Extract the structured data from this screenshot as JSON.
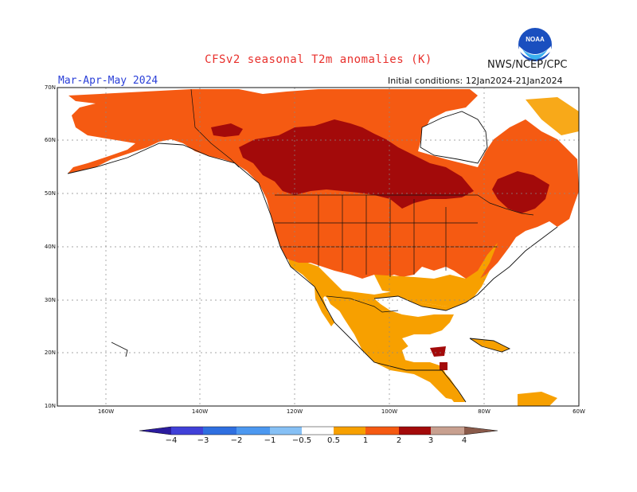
{
  "header": {
    "title": "CFSv2 seasonal T2m anomalies (K)",
    "agency": "NWS/NCEP/CPC",
    "logo_text": "NOAA",
    "season": "Mar-Apr-May 2024",
    "initial_conditions": "Initial conditions: 12Jan2024-21Jan2024"
  },
  "axes": {
    "lat_labels": [
      "70N",
      "60N",
      "50N",
      "40N",
      "30N",
      "20N",
      "10N"
    ],
    "lon_labels": [
      "160W",
      "140W",
      "120W",
      "100W",
      "80W",
      "60W"
    ]
  },
  "colorbar": {
    "labels": [
      "-4",
      "-3",
      "-2",
      "-1",
      "-0.5",
      "0.5",
      "1",
      "2",
      "3",
      "4"
    ],
    "colors": [
      "#2b1b9e",
      "#4040d8",
      "#2f6fe0",
      "#4c98f0",
      "#86c0f5",
      "#ffffff",
      "#f7a000",
      "#f55a12",
      "#e02710",
      "#a30a0a",
      "#c8a090",
      "#8a5a4a"
    ]
  },
  "map_colors": {
    "ocean": "#ffffff",
    "land_gray": "#ffffff",
    "c_0_5_1": "#f7a000",
    "c_1_2": "#f55a12",
    "c_2_3": "#a30a0a",
    "c_3_4": "#c8a090",
    "border": "#111111"
  }
}
